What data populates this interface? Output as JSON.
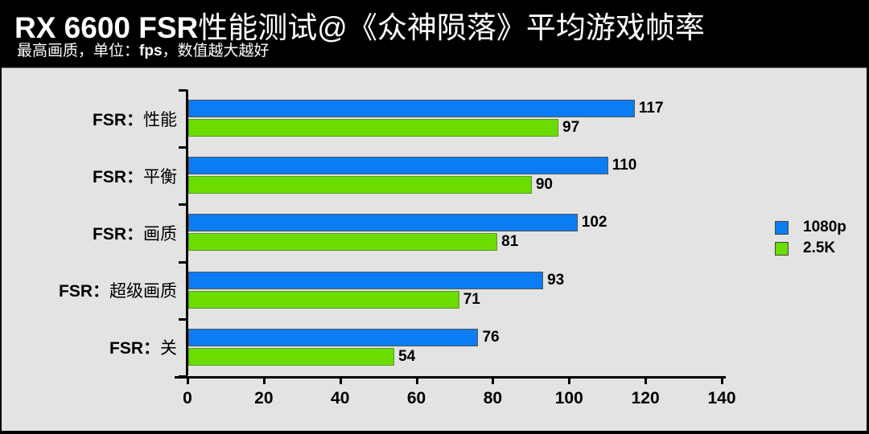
{
  "header": {
    "title_en": "RX 6600 FSR",
    "title_cn": "性能测试@《众神陨落》平均游戏帧率",
    "subtitle_a": "最高画质，单位：",
    "subtitle_b": "fps",
    "subtitle_c": "，数值越大越好"
  },
  "chart_data": {
    "type": "bar",
    "orientation": "horizontal",
    "title": "RX 6600 FSR性能测试@《众神陨落》平均游戏帧率",
    "subtitle": "最高画质，单位：fps，数值越大越好",
    "categories": [
      "FSR：性能",
      "FSR：平衡",
      "FSR：画质",
      "FSR：超级画质",
      "FSR：关"
    ],
    "series": [
      {
        "name": "1080p",
        "color": "#0a7df5",
        "values": [
          117,
          110,
          102,
          93,
          76
        ]
      },
      {
        "name": "2.5K",
        "color": "#6bdc00",
        "values": [
          97,
          90,
          81,
          71,
          54
        ]
      }
    ],
    "xlim": [
      0,
      140
    ],
    "xticks": [
      0,
      20,
      40,
      60,
      80,
      100,
      120,
      140
    ],
    "xlabel": "",
    "ylabel": "",
    "grid": false,
    "legend_position": "right"
  },
  "axis": {
    "ticks": [
      "0",
      "20",
      "40",
      "60",
      "80",
      "100",
      "120",
      "140"
    ]
  },
  "categories": [
    {
      "prefix": "FSR：",
      "name": "性能",
      "v1": "117",
      "v2": "97"
    },
    {
      "prefix": "FSR：",
      "name": "平衡",
      "v1": "110",
      "v2": "90"
    },
    {
      "prefix": "FSR：",
      "name": "画质",
      "v1": "102",
      "v2": "81"
    },
    {
      "prefix": "FSR：",
      "name": "超级画质",
      "v1": "93",
      "v2": "71"
    },
    {
      "prefix": "FSR：",
      "name": "关",
      "v1": "76",
      "v2": "54"
    }
  ],
  "legend": [
    {
      "label": "1080p",
      "color": "#0a7df5"
    },
    {
      "label": "2.5K",
      "color": "#6bdc00"
    }
  ]
}
